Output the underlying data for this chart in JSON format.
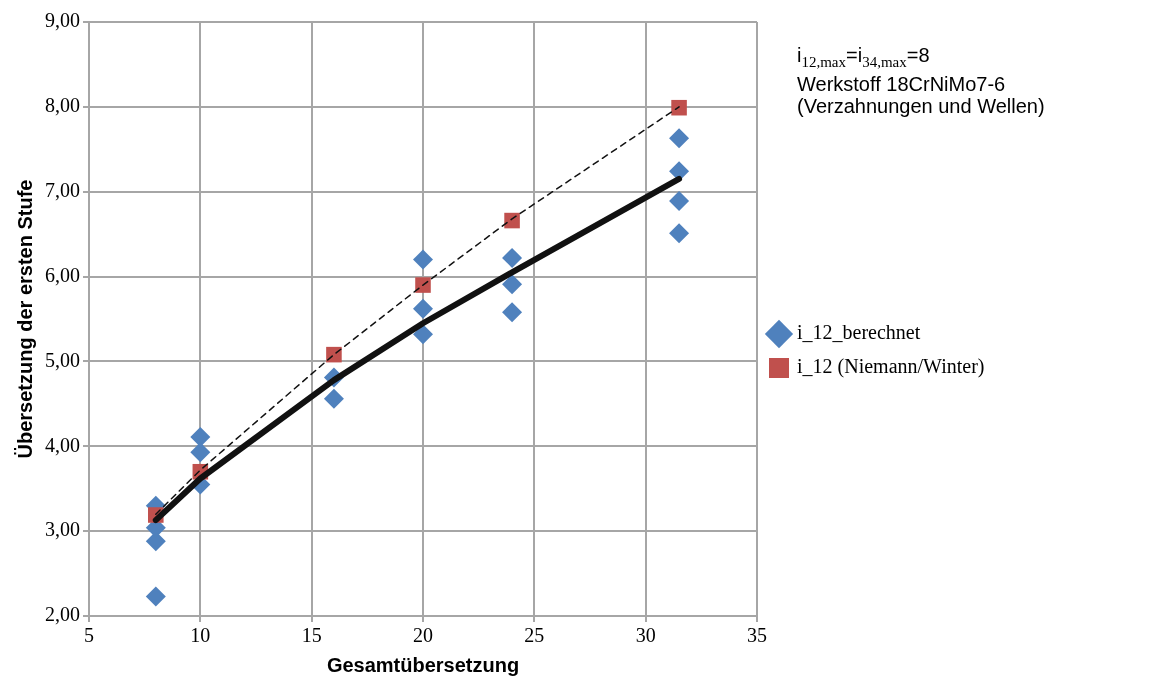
{
  "chart_data": {
    "type": "scatter",
    "xlabel": "Gesamtübersetzung",
    "ylabel": "Übersetzung der ersten Stufe",
    "xlim": [
      5,
      35
    ],
    "xticks": [
      5,
      10,
      15,
      20,
      25,
      30,
      35
    ],
    "ylim": [
      2,
      9
    ],
    "yticks": [
      {
        "value": 2,
        "label": "2,00"
      },
      {
        "value": 3,
        "label": "3,00"
      },
      {
        "value": 4,
        "label": "4,00"
      },
      {
        "value": 5,
        "label": "5,00"
      },
      {
        "value": 6,
        "label": "6,00"
      },
      {
        "value": 7,
        "label": "7,00"
      },
      {
        "value": 8,
        "label": "8,00"
      },
      {
        "value": 9,
        "label": "9,00"
      }
    ],
    "grid": true,
    "legend": "right",
    "annotations": [
      "i$_{12,max}$=i$_{34,max}$=8",
      "Werkstoff 18CrNiMo7-6",
      "(Verzahnungen und Wellen)"
    ],
    "series": [
      {
        "name": "i_12_berechnet",
        "type": "scatter",
        "marker": "diamond",
        "color": "#4f81bd",
        "x": [
          8,
          8,
          8,
          8,
          10,
          10,
          10,
          16,
          16,
          20,
          20,
          20,
          24,
          24,
          24,
          31.5,
          31.5,
          31.5,
          31.5
        ],
        "values": [
          2.23,
          2.88,
          3.04,
          3.3,
          4.11,
          3.93,
          3.55,
          4.81,
          4.56,
          6.2,
          5.62,
          5.32,
          6.22,
          5.91,
          5.58,
          7.63,
          7.24,
          6.89,
          6.51
        ]
      },
      {
        "name": "i_12 (Niemann/Winter)",
        "type": "scatter",
        "marker": "square",
        "color": "#c0504d",
        "x": [
          8,
          10,
          16,
          20,
          24,
          31.5
        ],
        "values": [
          3.19,
          3.7,
          5.08,
          5.9,
          6.66,
          7.99
        ]
      },
      {
        "type": "line",
        "marker": "none",
        "line_style": "solid",
        "color": "#111111",
        "x": [
          8,
          10,
          16,
          20,
          24,
          31.5
        ],
        "values": [
          3.13,
          3.62,
          4.78,
          5.45,
          6.05,
          7.15
        ]
      },
      {
        "type": "line",
        "marker": "none",
        "line_style": "dashed",
        "color": "#111111",
        "x": [
          8,
          10,
          16,
          20,
          24,
          31.5
        ],
        "values": [
          3.2,
          3.72,
          5.08,
          5.9,
          6.68,
          8.0
        ]
      }
    ]
  }
}
